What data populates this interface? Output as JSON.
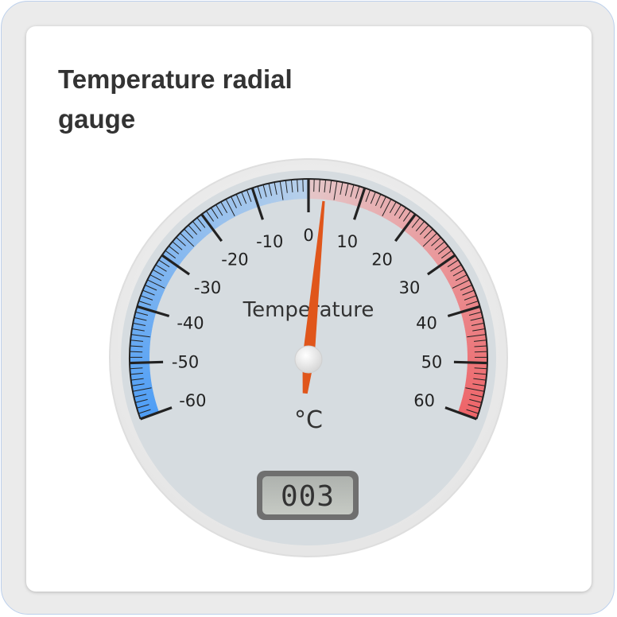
{
  "card": {
    "title": "Temperature radial gauge"
  },
  "gauge": {
    "title": "Temperature",
    "units": "°C",
    "min": -60,
    "max": 60,
    "value": 3,
    "value_display": "003",
    "major_ticks": [
      "-60",
      "-50",
      "-40",
      "-30",
      "-20",
      "-10",
      "0",
      "10",
      "20",
      "30",
      "40",
      "50",
      "60"
    ],
    "minor_ticks_per_major": 10,
    "start_angle_deg": 250,
    "end_angle_deg": 110,
    "colors": {
      "plate": "#d6dce0",
      "needle": "#e0561b",
      "cold": "#4f9ef5",
      "cold_light": "#b8d0ea",
      "warm_light": "#e5c6c8",
      "warm": "#ee6468",
      "ticks": "#222222"
    }
  }
}
